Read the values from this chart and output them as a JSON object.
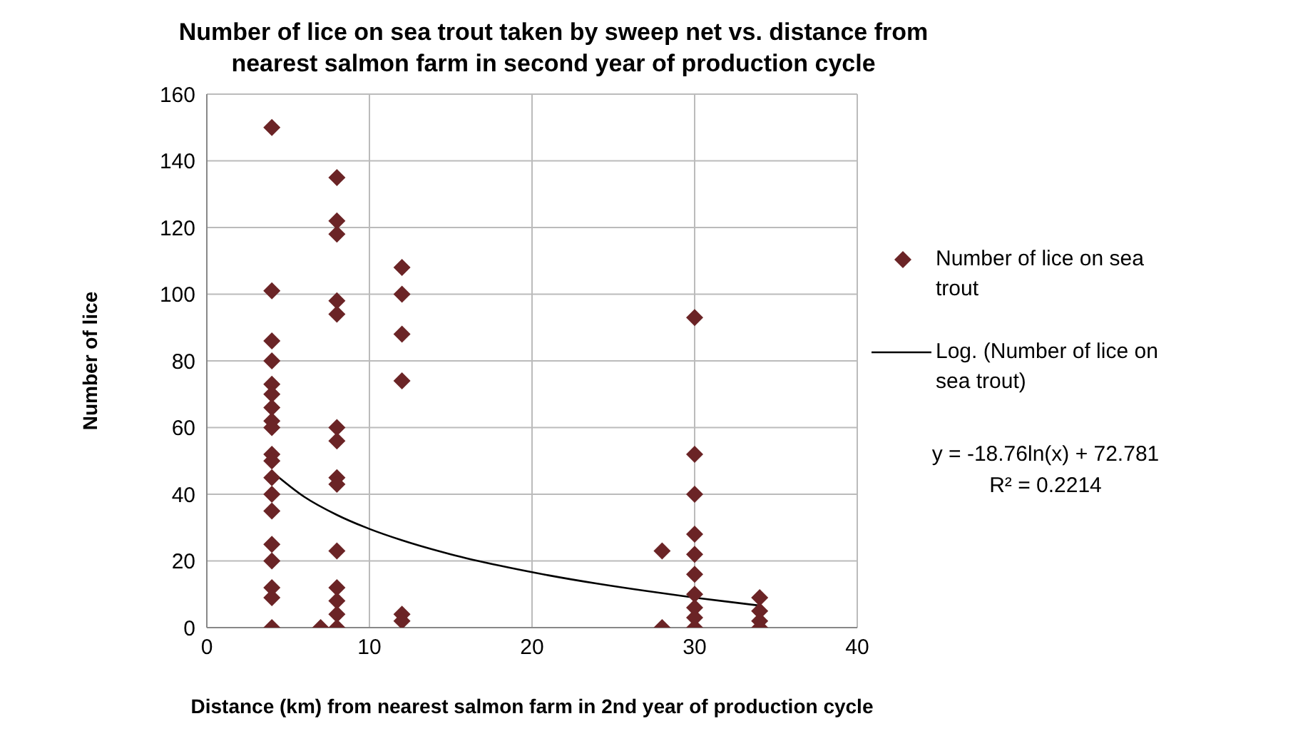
{
  "chart_data": {
    "type": "scatter",
    "title": "Number of lice on sea trout taken by sweep net vs. distance from nearest salmon farm in second year of production cycle",
    "xlabel": "Distance (km) from nearest salmon farm in 2nd year of production cycle",
    "ylabel": "Number of lice",
    "xlim": [
      0,
      40
    ],
    "xticks": [
      0,
      10,
      20,
      30,
      40
    ],
    "ylim": [
      0,
      160
    ],
    "yticks": [
      0,
      20,
      40,
      60,
      80,
      100,
      120,
      140,
      160
    ],
    "grid": true,
    "legend": "right",
    "marker": "diamond",
    "series": [
      {
        "name": "Number of lice on sea trout",
        "color": "#6b2426",
        "x": [
          4,
          4,
          4,
          4,
          4,
          4,
          4,
          4,
          4,
          4,
          4,
          4,
          4,
          4,
          4,
          4,
          4,
          4,
          4,
          7,
          8,
          8,
          8,
          8,
          8,
          8,
          8,
          8,
          8,
          8,
          8,
          8,
          8,
          8,
          12,
          12,
          12,
          12,
          12,
          12,
          28,
          28,
          30,
          30,
          30,
          30,
          30,
          30,
          30,
          30,
          30,
          30,
          34,
          34,
          34,
          34
        ],
        "values": [
          150,
          101,
          86,
          80,
          73,
          70,
          66,
          62,
          60,
          52,
          50,
          45,
          40,
          35,
          25,
          20,
          12,
          9,
          0,
          0,
          135,
          122,
          118,
          98,
          94,
          60,
          56,
          45,
          43,
          23,
          12,
          8,
          4,
          0,
          108,
          100,
          88,
          74,
          4,
          2,
          23,
          0,
          93,
          52,
          40,
          28,
          22,
          16,
          10,
          6,
          3,
          0,
          9,
          5,
          2,
          0
        ]
      },
      {
        "name": "Log. (Number of lice on sea trout)",
        "type": "line",
        "color": "#000000",
        "marker": "none",
        "x": [
          4,
          6,
          8,
          10,
          12,
          15,
          18,
          21,
          24,
          27,
          30,
          34
        ],
        "values": [
          46.8,
          39.2,
          33.8,
          29.6,
          26.2,
          22,
          18.6,
          15.7,
          13.2,
          11,
          9,
          6.6
        ]
      }
    ],
    "annotations": [
      "y = -18.76ln(x) + 72.781",
      "R² = 0.2214"
    ]
  }
}
